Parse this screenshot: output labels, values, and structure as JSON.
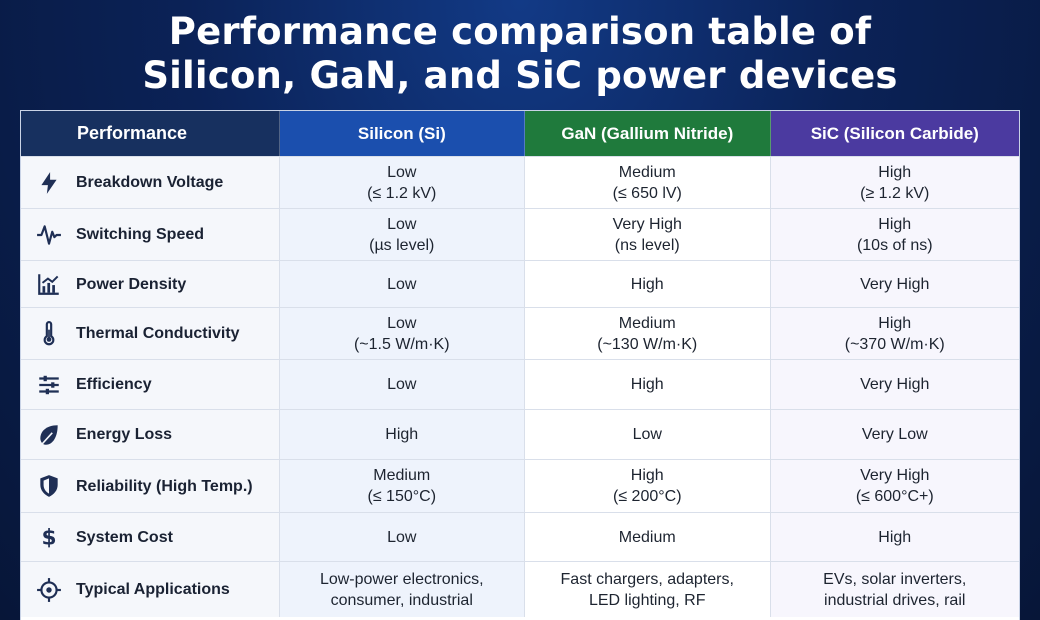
{
  "title": {
    "line1": "Performance comparison table of",
    "line2": "Silicon, GaN, and SiC power devices"
  },
  "columns": [
    "Performance",
    "Silicon (Si)",
    "GaN (Gallium Nitride)",
    "SiC (Silicon Carbide)"
  ],
  "column_colors": [
    "#17305f",
    "#1b4fae",
    "#1f7a3c",
    "#4b3aa0"
  ],
  "rows": [
    {
      "label": "Breakdown Voltage",
      "icon": "lightning-bolt-icon",
      "si": "Low\n(≤ 1.2 kV)",
      "gan": "Medium\n(≤ 650 lV)",
      "sic": "High\n(≥ 1.2 kV)"
    },
    {
      "label": "Switching Speed",
      "icon": "waveform-icon",
      "si": "Low\n(µs level)",
      "gan": "Very High\n(ns level)",
      "sic": "High\n(10s of ns)"
    },
    {
      "label": "Power Density",
      "icon": "bar-chart-icon",
      "si": "Low",
      "gan": "High",
      "sic": "Very High"
    },
    {
      "label": "Thermal Conductivity",
      "icon": "thermometer-icon",
      "si": "Low\n(~1.5 W/m·K)",
      "gan": "Medium\n(~130 W/m·K)",
      "sic": "High\n(~370 W/m·K)"
    },
    {
      "label": "Efficiency",
      "icon": "sliders-icon",
      "si": "Low",
      "gan": "High",
      "sic": "Very High"
    },
    {
      "label": "Energy Loss",
      "icon": "leaf-icon",
      "si": "High",
      "gan": "Low",
      "sic": "Very Low"
    },
    {
      "label": "Reliability (High Temp.)",
      "icon": "shield-icon",
      "si": "Medium\n(≤ 150°C)",
      "gan": "High\n(≤ 200°C)",
      "sic": "Very High\n(≤ 600°C+)"
    },
    {
      "label": "System Cost",
      "icon": "dollar-icon",
      "si": "Low",
      "gan": "Medium",
      "sic": "High"
    },
    {
      "label": "Typical Applications",
      "icon": "crosshair-icon",
      "si": "Low-power electronics,\nconsumer, industrial",
      "gan": "Fast chargers, adapters,\nLED lighting, RF",
      "sic": "EVs, solar inverters,\nindustrial drives, rail"
    }
  ]
}
